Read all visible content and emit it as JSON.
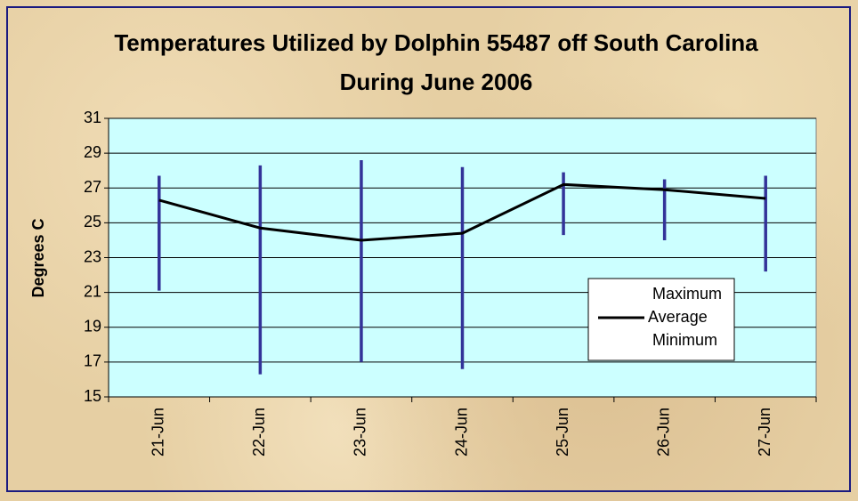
{
  "chart_data": {
    "type": "hilo",
    "title": "Temperatures Utilized by Dolphin 55487 off South Carolina During June 2006",
    "y_label": "Degrees C",
    "categories": [
      "21-Jun",
      "22-Jun",
      "23-Jun",
      "24-Jun",
      "25-Jun",
      "26-Jun",
      "27-Jun"
    ],
    "series": [
      {
        "name": "Maximum",
        "color": "#333399",
        "values": [
          27.7,
          28.3,
          28.6,
          28.2,
          27.9,
          27.5,
          27.7
        ]
      },
      {
        "name": "Average",
        "color": "#000000",
        "values": [
          26.3,
          24.7,
          24.0,
          24.4,
          27.2,
          26.9,
          26.4
        ]
      },
      {
        "name": "Minimum",
        "color": "#333399",
        "values": [
          21.1,
          16.3,
          17.0,
          16.6,
          24.3,
          24.0,
          22.2
        ]
      }
    ],
    "ylim": [
      15,
      31
    ],
    "yticks": [
      15,
      17,
      19,
      21,
      23,
      25,
      27,
      29,
      31
    ],
    "grid": true
  }
}
